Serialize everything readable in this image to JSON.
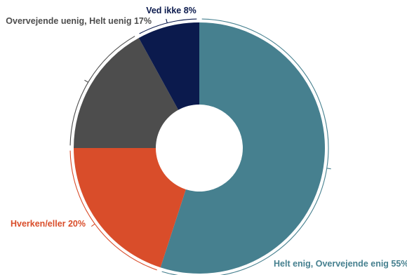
{
  "chart_data": {
    "type": "pie",
    "donut": true,
    "title": "",
    "legend": "none",
    "slices": [
      {
        "label": "Helt enig, Overvejende enig 55%",
        "value": 55,
        "color": "#46808f"
      },
      {
        "label": "Hverken/eller 20%",
        "value": 20,
        "color": "#d94d2a"
      },
      {
        "label": "Overvejende uenig, Helt uenig 17%",
        "value": 17,
        "color": "#4d4d4d"
      },
      {
        "label": "Ved ikke 8%",
        "value": 8,
        "color": "#0b1a4d"
      }
    ],
    "label_colors": [
      "#46808f",
      "#d94d2a",
      "#4d4d4d",
      "#0b1a4d"
    ]
  }
}
